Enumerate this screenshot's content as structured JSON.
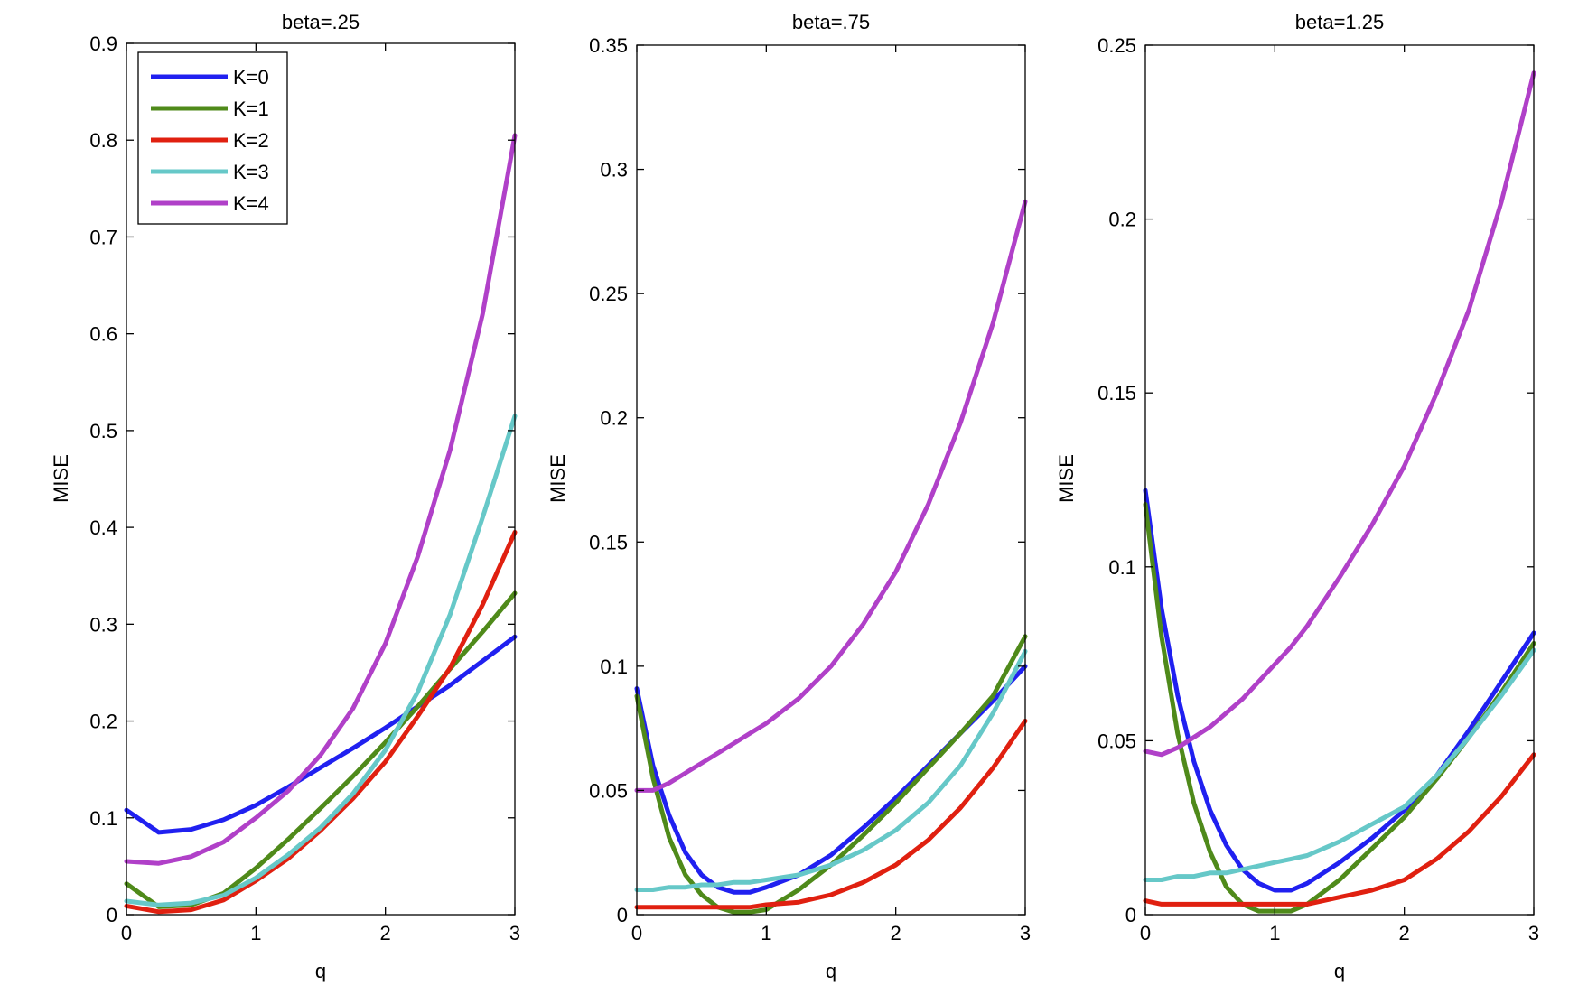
{
  "chart_data": [
    {
      "type": "line",
      "title": "beta=.25",
      "xlabel": "q",
      "ylabel": "MISE",
      "xlim": [
        0,
        3
      ],
      "ylim": [
        0,
        0.9
      ],
      "xticks": [
        0,
        1,
        2,
        3
      ],
      "xtick_labels": [
        "0",
        "1",
        "2",
        "3"
      ],
      "yticks": [
        0,
        0.1,
        0.2,
        0.3,
        0.4,
        0.5,
        0.6,
        0.7,
        0.8,
        0.9
      ],
      "ytick_labels": [
        "0",
        "0.1",
        "0.2",
        "0.3",
        "0.4",
        "0.5",
        "0.6",
        "0.7",
        "0.8",
        "0.9"
      ],
      "legend": {
        "position": "top-left",
        "entries": [
          "K=0",
          "K=1",
          "K=2",
          "K=3",
          "K=4"
        ]
      },
      "x": [
        0,
        0.25,
        0.5,
        0.75,
        1,
        1.25,
        1.5,
        1.75,
        2,
        2.25,
        2.5,
        2.75,
        3
      ],
      "series": [
        {
          "name": "K=0",
          "color": "#2020f0",
          "values": [
            0.108,
            0.085,
            0.088,
            0.098,
            0.113,
            0.132,
            0.152,
            0.172,
            0.193,
            0.215,
            0.237,
            0.262,
            0.287
          ]
        },
        {
          "name": "K=1",
          "color": "#4f8a1a",
          "values": [
            0.032,
            0.008,
            0.01,
            0.022,
            0.048,
            0.078,
            0.11,
            0.143,
            0.178,
            0.215,
            0.254,
            0.292,
            0.332
          ]
        },
        {
          "name": "K=2",
          "color": "#e02010",
          "values": [
            0.009,
            0.003,
            0.005,
            0.015,
            0.035,
            0.058,
            0.087,
            0.12,
            0.158,
            0.205,
            0.255,
            0.32,
            0.395
          ]
        },
        {
          "name": "K=3",
          "color": "#66c8c8",
          "values": [
            0.014,
            0.01,
            0.012,
            0.02,
            0.038,
            0.062,
            0.09,
            0.125,
            0.17,
            0.23,
            0.31,
            0.41,
            0.515
          ]
        },
        {
          "name": "K=4",
          "color": "#b040c8",
          "values": [
            0.055,
            0.053,
            0.06,
            0.075,
            0.1,
            0.128,
            0.165,
            0.213,
            0.28,
            0.37,
            0.48,
            0.62,
            0.805
          ]
        }
      ]
    },
    {
      "type": "line",
      "title": "beta=.75",
      "xlabel": "q",
      "ylabel": "MISE",
      "xlim": [
        0,
        3
      ],
      "ylim": [
        0,
        0.35
      ],
      "xticks": [
        0,
        1,
        2,
        3
      ],
      "xtick_labels": [
        "0",
        "1",
        "2",
        "3"
      ],
      "yticks": [
        0,
        0.05,
        0.1,
        0.15,
        0.2,
        0.25,
        0.3,
        0.35
      ],
      "ytick_labels": [
        "0",
        "0.05",
        "0.1",
        "0.15",
        "0.2",
        "0.25",
        "0.3",
        "0.35"
      ],
      "x": [
        0,
        0.125,
        0.25,
        0.375,
        0.5,
        0.625,
        0.75,
        0.875,
        1,
        1.25,
        1.5,
        1.75,
        2,
        2.25,
        2.5,
        2.75,
        3
      ],
      "series": [
        {
          "name": "K=0",
          "color": "#2020f0",
          "values": [
            0.091,
            0.06,
            0.04,
            0.025,
            0.016,
            0.011,
            0.009,
            0.009,
            0.011,
            0.016,
            0.024,
            0.035,
            0.047,
            0.06,
            0.073,
            0.086,
            0.1
          ]
        },
        {
          "name": "K=1",
          "color": "#4f8a1a",
          "values": [
            0.088,
            0.055,
            0.031,
            0.016,
            0.008,
            0.003,
            0.001,
            0.001,
            0.002,
            0.01,
            0.02,
            0.032,
            0.045,
            0.059,
            0.073,
            0.088,
            0.112
          ]
        },
        {
          "name": "K=2",
          "color": "#e02010",
          "values": [
            0.003,
            0.003,
            0.003,
            0.003,
            0.003,
            0.003,
            0.003,
            0.003,
            0.004,
            0.005,
            0.008,
            0.013,
            0.02,
            0.03,
            0.043,
            0.059,
            0.078
          ]
        },
        {
          "name": "K=3",
          "color": "#66c8c8",
          "values": [
            0.01,
            0.01,
            0.011,
            0.011,
            0.012,
            0.012,
            0.013,
            0.013,
            0.014,
            0.016,
            0.02,
            0.026,
            0.034,
            0.045,
            0.06,
            0.081,
            0.106
          ]
        },
        {
          "name": "K=4",
          "color": "#b040c8",
          "values": [
            0.05,
            0.05,
            0.053,
            0.057,
            0.061,
            0.065,
            0.069,
            0.073,
            0.077,
            0.087,
            0.1,
            0.117,
            0.138,
            0.165,
            0.198,
            0.238,
            0.287
          ]
        }
      ]
    },
    {
      "type": "line",
      "title": "beta=1.25",
      "xlabel": "q",
      "ylabel": "MISE",
      "xlim": [
        0,
        3
      ],
      "ylim": [
        0,
        0.25
      ],
      "xticks": [
        0,
        1,
        2,
        3
      ],
      "xtick_labels": [
        "0",
        "1",
        "2",
        "3"
      ],
      "yticks": [
        0,
        0.05,
        0.1,
        0.15,
        0.2,
        0.25
      ],
      "ytick_labels": [
        "0",
        "0.05",
        "0.1",
        "0.15",
        "0.2",
        "0.25"
      ],
      "x": [
        0,
        0.125,
        0.25,
        0.375,
        0.5,
        0.625,
        0.75,
        0.875,
        1,
        1.125,
        1.25,
        1.5,
        1.75,
        2,
        2.25,
        2.5,
        2.75,
        3
      ],
      "series": [
        {
          "name": "K=0",
          "color": "#2020f0",
          "values": [
            0.122,
            0.088,
            0.063,
            0.044,
            0.03,
            0.02,
            0.013,
            0.009,
            0.007,
            0.007,
            0.009,
            0.015,
            0.022,
            0.03,
            0.04,
            0.053,
            0.067,
            0.081
          ]
        },
        {
          "name": "K=1",
          "color": "#4f8a1a",
          "values": [
            0.118,
            0.08,
            0.052,
            0.032,
            0.018,
            0.008,
            0.003,
            0.001,
            0.001,
            0.001,
            0.003,
            0.01,
            0.019,
            0.028,
            0.039,
            0.051,
            0.064,
            0.078
          ]
        },
        {
          "name": "K=2",
          "color": "#e02010",
          "values": [
            0.004,
            0.003,
            0.003,
            0.003,
            0.003,
            0.003,
            0.003,
            0.003,
            0.003,
            0.003,
            0.003,
            0.005,
            0.007,
            0.01,
            0.016,
            0.024,
            0.034,
            0.046
          ]
        },
        {
          "name": "K=3",
          "color": "#66c8c8",
          "values": [
            0.01,
            0.01,
            0.011,
            0.011,
            0.012,
            0.012,
            0.013,
            0.014,
            0.015,
            0.016,
            0.017,
            0.021,
            0.026,
            0.031,
            0.04,
            0.051,
            0.063,
            0.076
          ]
        },
        {
          "name": "K=4",
          "color": "#b040c8",
          "values": [
            0.047,
            0.046,
            0.048,
            0.051,
            0.054,
            0.058,
            0.062,
            0.067,
            0.072,
            0.077,
            0.083,
            0.097,
            0.112,
            0.129,
            0.15,
            0.174,
            0.205,
            0.242
          ]
        }
      ]
    }
  ]
}
